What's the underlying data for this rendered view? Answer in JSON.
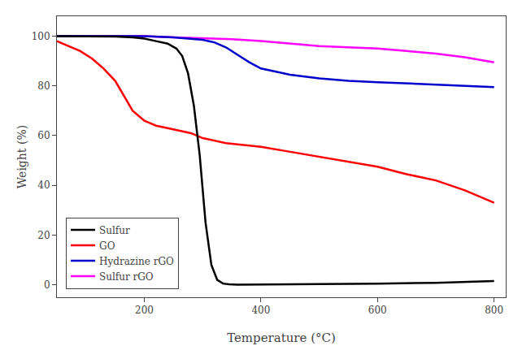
{
  "chart_data": {
    "type": "line",
    "xlabel": "Temperature (°C)",
    "ylabel": "Weight (%)",
    "xlim": [
      50,
      820
    ],
    "ylim": [
      -5,
      108
    ],
    "xticks": [
      200,
      400,
      600,
      800
    ],
    "yticks": [
      0,
      20,
      40,
      60,
      80,
      100
    ],
    "grid": false,
    "legend": "lower left",
    "series": [
      {
        "name": "Sulfur rGO",
        "color": "#ff00ff",
        "x": [
          50,
          100,
          150,
          200,
          250,
          300,
          350,
          400,
          450,
          500,
          550,
          600,
          650,
          700,
          750,
          800
        ],
        "values": [
          100,
          100,
          100,
          100,
          99.5,
          99.2,
          98.8,
          98,
          97,
          96,
          95.5,
          95,
          94,
          93,
          91.5,
          89.5
        ]
      },
      {
        "name": "Hydrazine rGO",
        "color": "#0000cc",
        "x": [
          50,
          100,
          150,
          200,
          250,
          280,
          300,
          320,
          340,
          360,
          380,
          400,
          450,
          500,
          550,
          600,
          650,
          700,
          750,
          800
        ],
        "values": [
          100,
          100,
          100,
          100,
          99.5,
          99,
          98.5,
          97.5,
          95.5,
          92.5,
          89.5,
          87,
          84.5,
          83,
          82,
          81.5,
          81,
          80.5,
          80,
          79.5
        ]
      },
      {
        "name": "GO",
        "color": "#ff0000",
        "x": [
          50,
          70,
          90,
          110,
          130,
          150,
          160,
          170,
          180,
          190,
          200,
          210,
          220,
          240,
          260,
          280,
          300,
          320,
          340,
          360,
          400,
          450,
          500,
          550,
          600,
          650,
          700,
          750,
          800
        ],
        "values": [
          98,
          96,
          94,
          91,
          87,
          82,
          78,
          74,
          70,
          68,
          66,
          65,
          64,
          63,
          62,
          61,
          59,
          58,
          57,
          56.5,
          55.5,
          53.5,
          51.5,
          49.5,
          47.5,
          44.5,
          42,
          38,
          33
        ]
      },
      {
        "name": "Sulfur",
        "color": "#000000",
        "x": [
          50,
          100,
          150,
          180,
          200,
          220,
          240,
          255,
          265,
          275,
          285,
          295,
          305,
          315,
          325,
          335,
          345,
          360,
          400,
          500,
          600,
          700,
          800
        ],
        "values": [
          100,
          100,
          99.8,
          99.5,
          99,
          98,
          97,
          95,
          92,
          85,
          72,
          52,
          25,
          8,
          2,
          0.5,
          0.2,
          0.1,
          0.1,
          0.3,
          0.5,
          0.8,
          1.5
        ]
      }
    ]
  }
}
